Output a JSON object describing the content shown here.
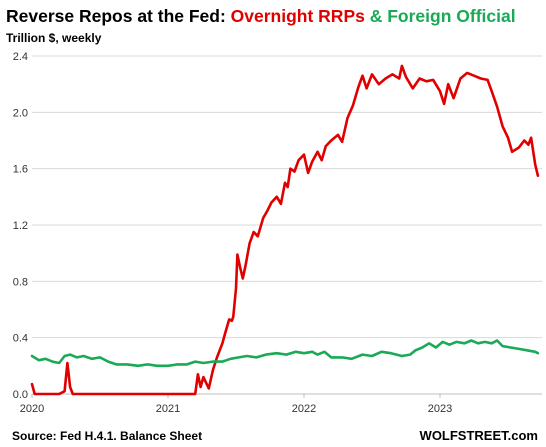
{
  "chart_data": {
    "type": "line",
    "title": {
      "prefix": "Reverse Repos at the Fed: ",
      "part1": "Overnight RRPs",
      "joiner": " & ",
      "part2": "Foreign Official"
    },
    "subtitle": "Trillion $, weekly",
    "source": "Source: Fed H.4.1. Balance Sheet",
    "brand": "WOLFSTREET.com",
    "ylim": [
      0,
      2.4
    ],
    "yticks": [
      "0.0",
      "0.4",
      "0.8",
      "1.2",
      "1.6",
      "2.0",
      "2.4"
    ],
    "xlim": [
      2020.0,
      2023.75
    ],
    "xticks": [
      {
        "value": 2020,
        "label": "2020"
      },
      {
        "value": 2021,
        "label": "2021"
      },
      {
        "value": 2022,
        "label": "2022"
      },
      {
        "value": 2023,
        "label": "2023"
      }
    ],
    "grid": true,
    "series": [
      {
        "name": "Overnight RRPs",
        "color": "#e00000",
        "points": [
          [
            2020.0,
            0.07
          ],
          [
            2020.02,
            0.0
          ],
          [
            2020.1,
            0.0
          ],
          [
            2020.2,
            0.0
          ],
          [
            2020.24,
            0.02
          ],
          [
            2020.26,
            0.22
          ],
          [
            2020.28,
            0.05
          ],
          [
            2020.3,
            0.0
          ],
          [
            2020.5,
            0.0
          ],
          [
            2020.7,
            0.0
          ],
          [
            2020.9,
            0.0
          ],
          [
            2021.0,
            0.0
          ],
          [
            2021.15,
            0.0
          ],
          [
            2021.2,
            0.0
          ],
          [
            2021.22,
            0.14
          ],
          [
            2021.24,
            0.05
          ],
          [
            2021.26,
            0.12
          ],
          [
            2021.3,
            0.04
          ],
          [
            2021.33,
            0.17
          ],
          [
            2021.36,
            0.26
          ],
          [
            2021.4,
            0.36
          ],
          [
            2021.42,
            0.43
          ],
          [
            2021.45,
            0.53
          ],
          [
            2021.47,
            0.52
          ],
          [
            2021.48,
            0.55
          ],
          [
            2021.5,
            0.75
          ],
          [
            2021.51,
            0.99
          ],
          [
            2021.53,
            0.9
          ],
          [
            2021.55,
            0.82
          ],
          [
            2021.57,
            0.91
          ],
          [
            2021.6,
            1.07
          ],
          [
            2021.63,
            1.15
          ],
          [
            2021.66,
            1.12
          ],
          [
            2021.7,
            1.25
          ],
          [
            2021.73,
            1.3
          ],
          [
            2021.76,
            1.36
          ],
          [
            2021.8,
            1.4
          ],
          [
            2021.83,
            1.35
          ],
          [
            2021.86,
            1.5
          ],
          [
            2021.88,
            1.47
          ],
          [
            2021.9,
            1.6
          ],
          [
            2021.93,
            1.58
          ],
          [
            2021.96,
            1.66
          ],
          [
            2022.0,
            1.7
          ],
          [
            2022.03,
            1.57
          ],
          [
            2022.06,
            1.65
          ],
          [
            2022.1,
            1.72
          ],
          [
            2022.13,
            1.66
          ],
          [
            2022.16,
            1.76
          ],
          [
            2022.2,
            1.8
          ],
          [
            2022.25,
            1.84
          ],
          [
            2022.28,
            1.79
          ],
          [
            2022.32,
            1.96
          ],
          [
            2022.36,
            2.05
          ],
          [
            2022.4,
            2.18
          ],
          [
            2022.43,
            2.26
          ],
          [
            2022.46,
            2.17
          ],
          [
            2022.5,
            2.27
          ],
          [
            2022.55,
            2.2
          ],
          [
            2022.6,
            2.24
          ],
          [
            2022.65,
            2.27
          ],
          [
            2022.7,
            2.24
          ],
          [
            2022.72,
            2.33
          ],
          [
            2022.75,
            2.25
          ],
          [
            2022.8,
            2.17
          ],
          [
            2022.85,
            2.24
          ],
          [
            2022.9,
            2.22
          ],
          [
            2022.95,
            2.23
          ],
          [
            2023.0,
            2.15
          ],
          [
            2023.03,
            2.06
          ],
          [
            2023.06,
            2.2
          ],
          [
            2023.1,
            2.1
          ],
          [
            2023.15,
            2.24
          ],
          [
            2023.2,
            2.28
          ],
          [
            2023.25,
            2.26
          ],
          [
            2023.3,
            2.24
          ],
          [
            2023.35,
            2.23
          ],
          [
            2023.38,
            2.15
          ],
          [
            2023.42,
            2.04
          ],
          [
            2023.46,
            1.9
          ],
          [
            2023.5,
            1.82
          ],
          [
            2023.53,
            1.72
          ],
          [
            2023.58,
            1.75
          ],
          [
            2023.62,
            1.8
          ],
          [
            2023.65,
            1.77
          ],
          [
            2023.67,
            1.82
          ],
          [
            2023.7,
            1.63
          ],
          [
            2023.72,
            1.55
          ]
        ]
      },
      {
        "name": "Foreign Official",
        "color": "#1aaa55",
        "points": [
          [
            2020.0,
            0.27
          ],
          [
            2020.05,
            0.24
          ],
          [
            2020.1,
            0.25
          ],
          [
            2020.15,
            0.23
          ],
          [
            2020.2,
            0.22
          ],
          [
            2020.24,
            0.27
          ],
          [
            2020.28,
            0.28
          ],
          [
            2020.33,
            0.26
          ],
          [
            2020.38,
            0.27
          ],
          [
            2020.44,
            0.25
          ],
          [
            2020.5,
            0.26
          ],
          [
            2020.56,
            0.23
          ],
          [
            2020.62,
            0.21
          ],
          [
            2020.7,
            0.21
          ],
          [
            2020.78,
            0.2
          ],
          [
            2020.85,
            0.21
          ],
          [
            2020.92,
            0.2
          ],
          [
            2021.0,
            0.2
          ],
          [
            2021.07,
            0.21
          ],
          [
            2021.14,
            0.21
          ],
          [
            2021.2,
            0.23
          ],
          [
            2021.26,
            0.22
          ],
          [
            2021.33,
            0.23
          ],
          [
            2021.4,
            0.23
          ],
          [
            2021.46,
            0.25
          ],
          [
            2021.52,
            0.26
          ],
          [
            2021.58,
            0.27
          ],
          [
            2021.65,
            0.26
          ],
          [
            2021.72,
            0.28
          ],
          [
            2021.8,
            0.29
          ],
          [
            2021.87,
            0.28
          ],
          [
            2021.94,
            0.3
          ],
          [
            2022.0,
            0.29
          ],
          [
            2022.06,
            0.3
          ],
          [
            2022.1,
            0.28
          ],
          [
            2022.15,
            0.3
          ],
          [
            2022.2,
            0.26
          ],
          [
            2022.28,
            0.26
          ],
          [
            2022.35,
            0.25
          ],
          [
            2022.43,
            0.28
          ],
          [
            2022.5,
            0.27
          ],
          [
            2022.57,
            0.3
          ],
          [
            2022.64,
            0.29
          ],
          [
            2022.72,
            0.27
          ],
          [
            2022.78,
            0.28
          ],
          [
            2022.82,
            0.31
          ],
          [
            2022.87,
            0.33
          ],
          [
            2022.92,
            0.36
          ],
          [
            2022.97,
            0.33
          ],
          [
            2023.02,
            0.37
          ],
          [
            2023.07,
            0.35
          ],
          [
            2023.12,
            0.37
          ],
          [
            2023.18,
            0.36
          ],
          [
            2023.23,
            0.38
          ],
          [
            2023.28,
            0.36
          ],
          [
            2023.33,
            0.37
          ],
          [
            2023.38,
            0.36
          ],
          [
            2023.42,
            0.38
          ],
          [
            2023.46,
            0.34
          ],
          [
            2023.52,
            0.33
          ],
          [
            2023.58,
            0.32
          ],
          [
            2023.64,
            0.31
          ],
          [
            2023.7,
            0.3
          ],
          [
            2023.72,
            0.29
          ]
        ]
      }
    ]
  }
}
